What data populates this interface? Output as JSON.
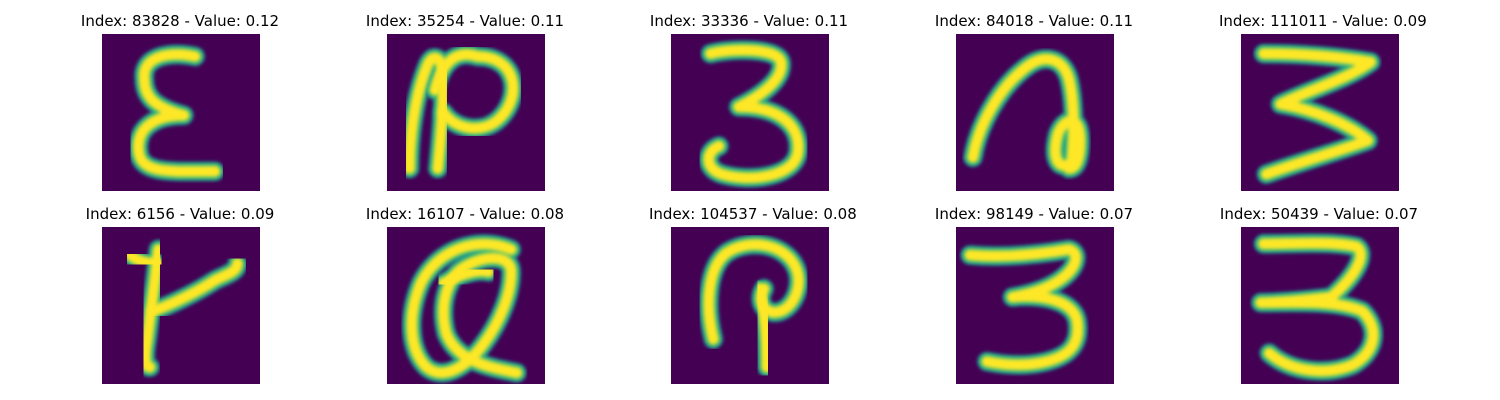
{
  "colors": {
    "background": "#440154",
    "stroke_mid": "#21908d",
    "stroke_hi": "#fde725",
    "stroke_edge": "#35b779"
  },
  "panels": [
    {
      "title": "Index: 83828 - Value: 0.12",
      "glyph": "epsilon"
    },
    {
      "title": "Index: 35254 - Value: 0.11",
      "glyph": "curl-n"
    },
    {
      "title": "Index: 33336 - Value: 0.11",
      "glyph": "three"
    },
    {
      "title": "Index: 84018 - Value: 0.11",
      "glyph": "loop-a"
    },
    {
      "title": "Index: 111011 - Value: 0.09",
      "glyph": "sharp-three"
    },
    {
      "title": "Index: 6156 - Value: 0.09",
      "glyph": "k-shape"
    },
    {
      "title": "Index: 16107 - Value: 0.08",
      "glyph": "at-shape"
    },
    {
      "title": "Index: 104537 - Value: 0.08",
      "glyph": "hook"
    },
    {
      "title": "Index: 98149 - Value: 0.07",
      "glyph": "three-b"
    },
    {
      "title": "Index: 50439 - Value: 0.07",
      "glyph": "three-c"
    }
  ]
}
